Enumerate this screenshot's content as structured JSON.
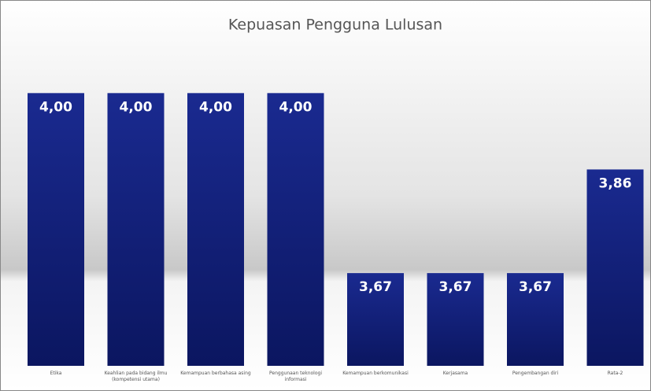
{
  "chart_data": {
    "type": "bar",
    "title": "Kepuasan Pengguna Lulusan",
    "categories": [
      "Etika",
      "Keahlian pada bidang ilmu (kompetensi utama)",
      "Kemampuan berbahasa asing",
      "Penggunaan teknologi informasi",
      "Kemampuan berkomunikasi",
      "Kerjasama",
      "Pengembangan diri",
      "Rata-2"
    ],
    "values": [
      4.0,
      4.0,
      4.0,
      4.0,
      3.67,
      3.67,
      3.67,
      3.86
    ],
    "value_labels": [
      "4,00",
      "4,00",
      "4,00",
      "4,00",
      "3,67",
      "3,67",
      "3,67",
      "3,86"
    ],
    "color": "#14238a",
    "ylim": [
      3.5,
      4.1
    ]
  }
}
